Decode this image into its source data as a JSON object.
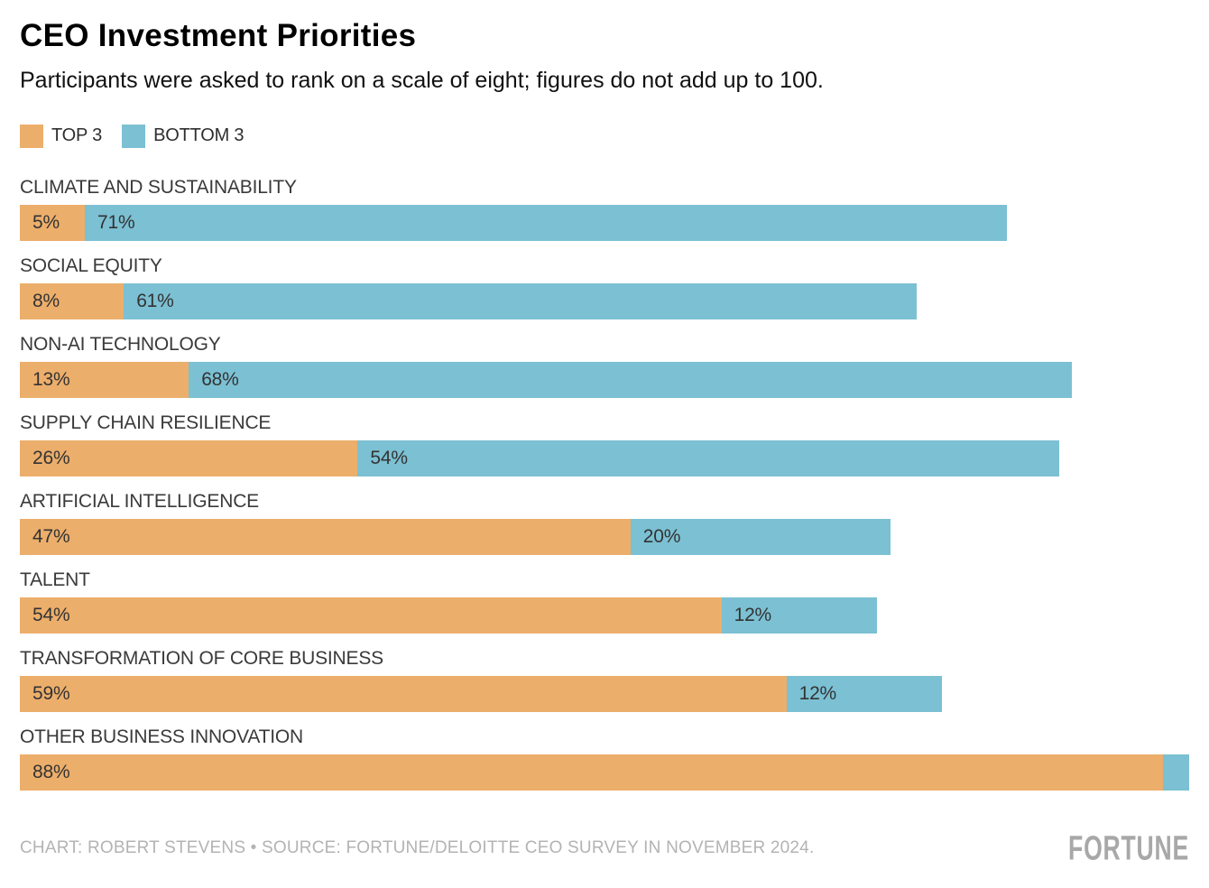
{
  "header": {
    "title": "CEO Investment Priorities",
    "subtitle": "Participants were asked to rank on a scale of eight; figures do not add up to 100."
  },
  "chart_data": {
    "type": "bar",
    "orientation": "horizontal",
    "stacked": true,
    "title": "CEO Investment Priorities",
    "subtitle": "Participants were asked to rank on a scale of eight; figures do not add up to 100.",
    "categories": [
      "CLIMATE AND SUSTAINABILITY",
      "SOCIAL EQUITY",
      "NON-AI TECHNOLOGY",
      "SUPPLY CHAIN RESILIENCE",
      "ARTIFICIAL INTELLIGENCE",
      "TALENT",
      "TRANSFORMATION OF CORE BUSINESS",
      "OTHER BUSINESS INNOVATION"
    ],
    "series": [
      {
        "name": "TOP 3",
        "color": "#ECAE6B",
        "values": [
          5,
          8,
          13,
          26,
          47,
          54,
          59,
          88
        ],
        "labels": [
          "5%",
          "8%",
          "13%",
          "26%",
          "47%",
          "54%",
          "59%",
          "88%"
        ]
      },
      {
        "name": "BOTTOM 3",
        "color": "#7BC0D3",
        "values": [
          71,
          61,
          68,
          54,
          20,
          12,
          12,
          2
        ],
        "labels": [
          "71%",
          "61%",
          "68%",
          "54%",
          "20%",
          "12%",
          "12%",
          ""
        ]
      }
    ],
    "unit": "%",
    "xlim": [
      0,
      90
    ],
    "grid": false,
    "legend_position": "top-left",
    "bar_label_color": "#333333"
  },
  "footer": {
    "credit": "CHART: ROBERT STEVENS • SOURCE: FORTUNE/DELOITTE CEO SURVEY IN NOVEMBER 2024.",
    "brand": "FORTUNE"
  }
}
